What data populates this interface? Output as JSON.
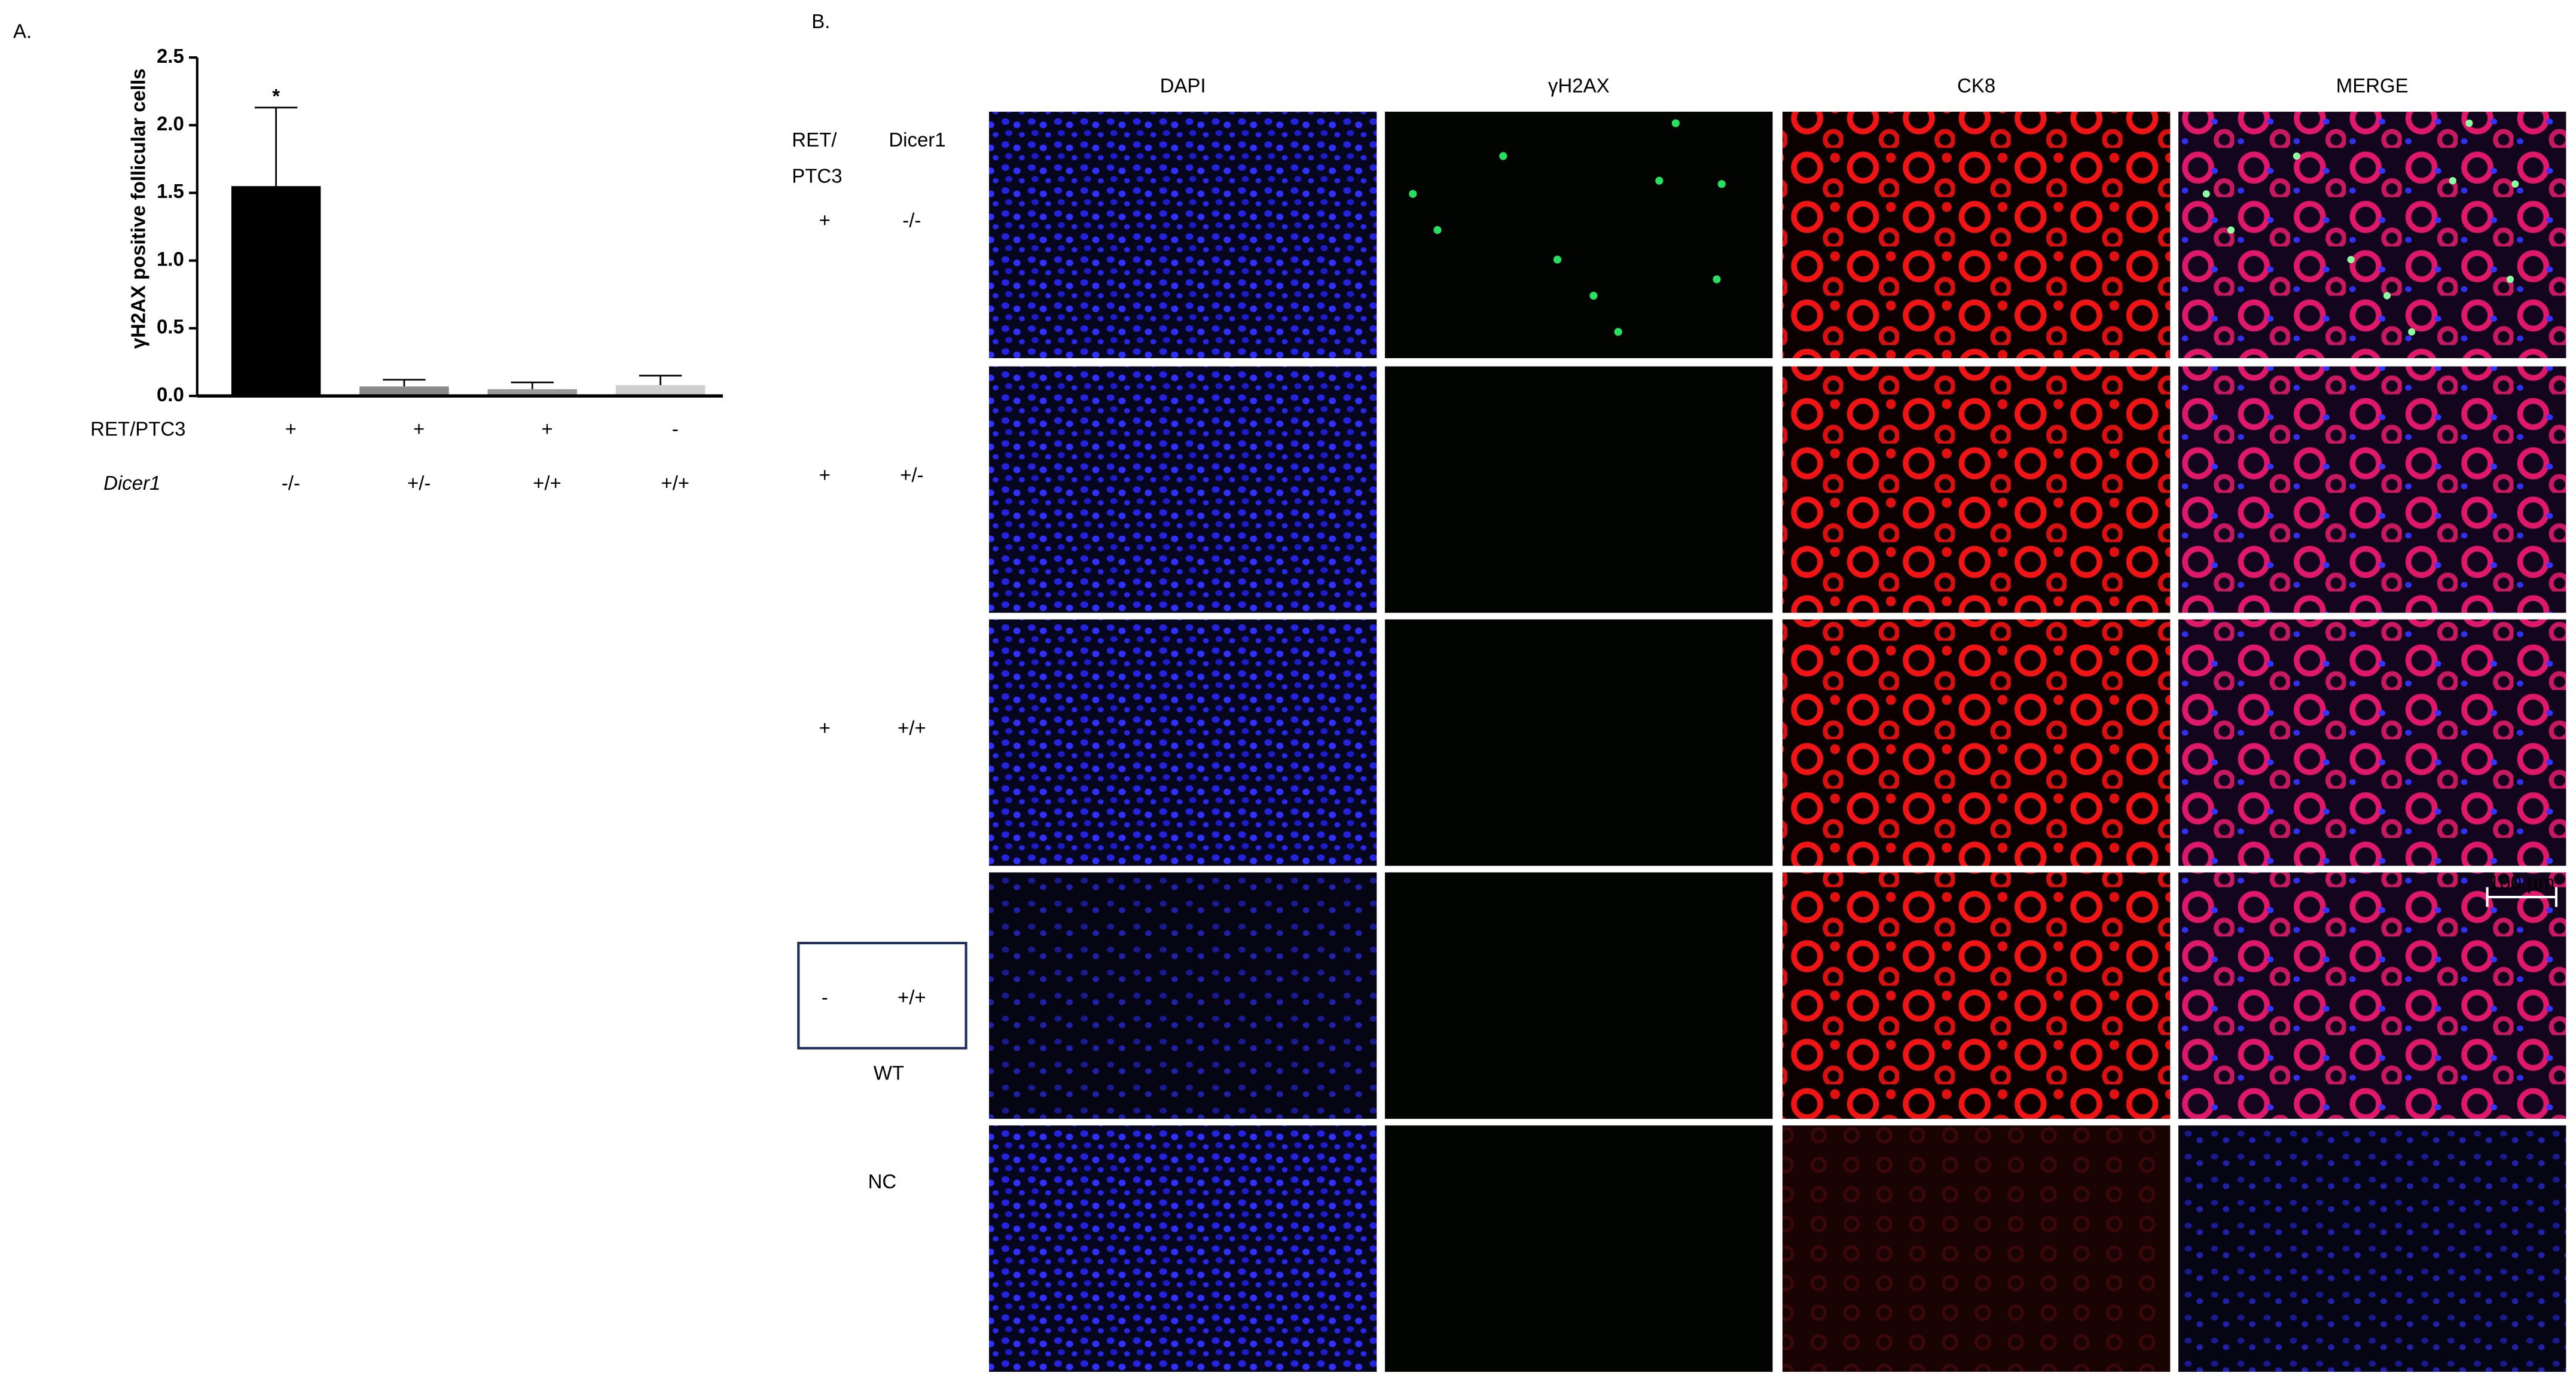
{
  "chart_data": {
    "type": "bar",
    "panel_label": "A.",
    "ylabel": "γH2AX positive follicular cells",
    "values": [
      1.55,
      0.07,
      0.05,
      0.08
    ],
    "errors": [
      0.58,
      0.05,
      0.05,
      0.07
    ],
    "colors": [
      "#000000",
      "#8a8a8a",
      "#9a9a9a",
      "#d0d0d0"
    ],
    "significance": [
      "*",
      null,
      null,
      null
    ],
    "ylim": [
      0,
      2.5
    ],
    "yticks": [
      {
        "value": 0,
        "label": "0.0"
      },
      {
        "value": 0.5,
        "label": "0.5"
      },
      {
        "value": 1,
        "label": "1.0"
      },
      {
        "value": 1.5,
        "label": "1.5"
      },
      {
        "value": 2,
        "label": "2.0"
      },
      {
        "value": 2.5,
        "label": "2.5"
      }
    ],
    "genotype_rows": [
      {
        "name": "RET/PTC3",
        "values": [
          "+",
          "+",
          "+",
          "-"
        ]
      },
      {
        "name": "Dicer1",
        "values": [
          "-/-",
          "+/-",
          "+/+",
          "+/+"
        ]
      }
    ]
  },
  "panel_b": {
    "panel_label": "B.",
    "columns": [
      {
        "label": "DAPI",
        "color": "#2e4da0"
      },
      {
        "label": "γH2AX",
        "color": "#14a050"
      },
      {
        "label": "CK8",
        "color": "#ee1c1c"
      },
      {
        "label": "MERGE",
        "color": "#000000"
      }
    ],
    "row_header": {
      "ret_lines": [
        "RET/",
        "PTC3"
      ],
      "dicer": "Dicer1"
    },
    "rows": [
      {
        "ret": "+",
        "dicer": "-/-"
      },
      {
        "ret": "+",
        "dicer": "+/-"
      },
      {
        "ret": "+",
        "dicer": "+/+"
      },
      {
        "ret": "-",
        "dicer": "+/+",
        "note": "WT"
      },
      {
        "control": "NC"
      }
    ],
    "scale_bar": "100 µm"
  }
}
